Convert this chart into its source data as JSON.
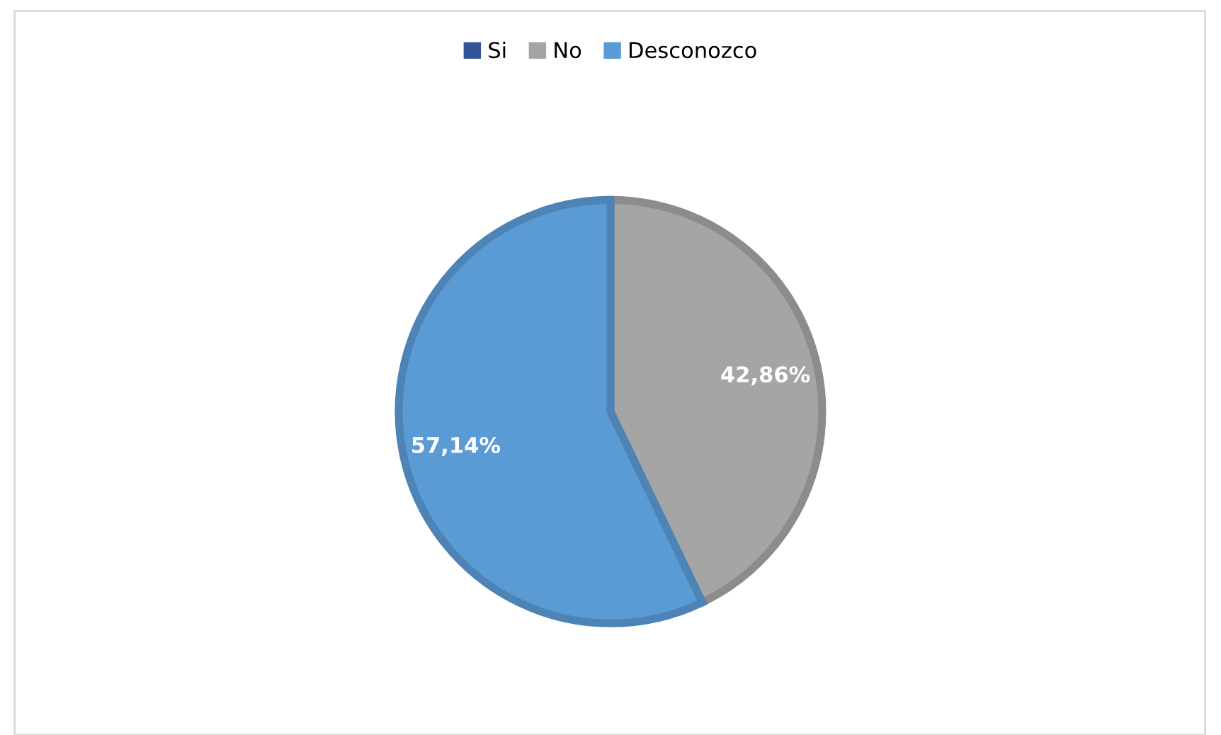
{
  "chart_data": {
    "type": "pie",
    "categories": [
      "Si",
      "No",
      "Desconozco"
    ],
    "values": [
      0,
      42.86,
      57.14
    ],
    "colors": [
      "#2f5597",
      "#a5a5a5",
      "#5b9bd5"
    ],
    "value_labels": [
      null,
      "42,86%",
      "57,14%"
    ],
    "legend": "top"
  }
}
